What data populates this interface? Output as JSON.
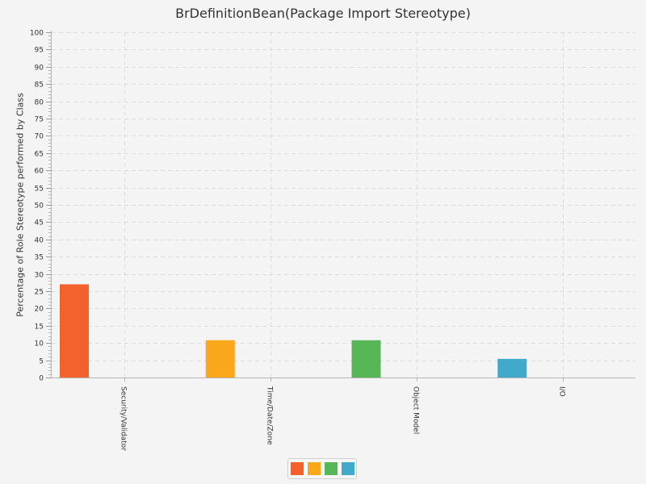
{
  "chart_data": {
    "type": "bar",
    "title": "BrDefinitionBean(Package Import Stereotype)",
    "xlabel": "",
    "ylabel": "Percentage of Role Stereotype performed by Class",
    "ylim": [
      0,
      100
    ],
    "y_major_ticks": [
      0,
      5,
      10,
      15,
      20,
      25,
      30,
      35,
      40,
      45,
      50,
      55,
      60,
      65,
      70,
      75,
      80,
      85,
      90,
      95,
      100
    ],
    "categories": [
      "Security/Validator",
      "Time/Date/Zone",
      "Object Model",
      "I/O"
    ],
    "values": [
      27.0,
      10.8,
      10.8,
      5.4
    ],
    "bar_colors": [
      "#f3622d",
      "#fba71b",
      "#57b757",
      "#41a9c9"
    ],
    "grid": true,
    "legend": {
      "placement": "bottom-center",
      "colors": [
        "#f3622d",
        "#fba71b",
        "#57b757",
        "#41a9c9"
      ]
    }
  }
}
